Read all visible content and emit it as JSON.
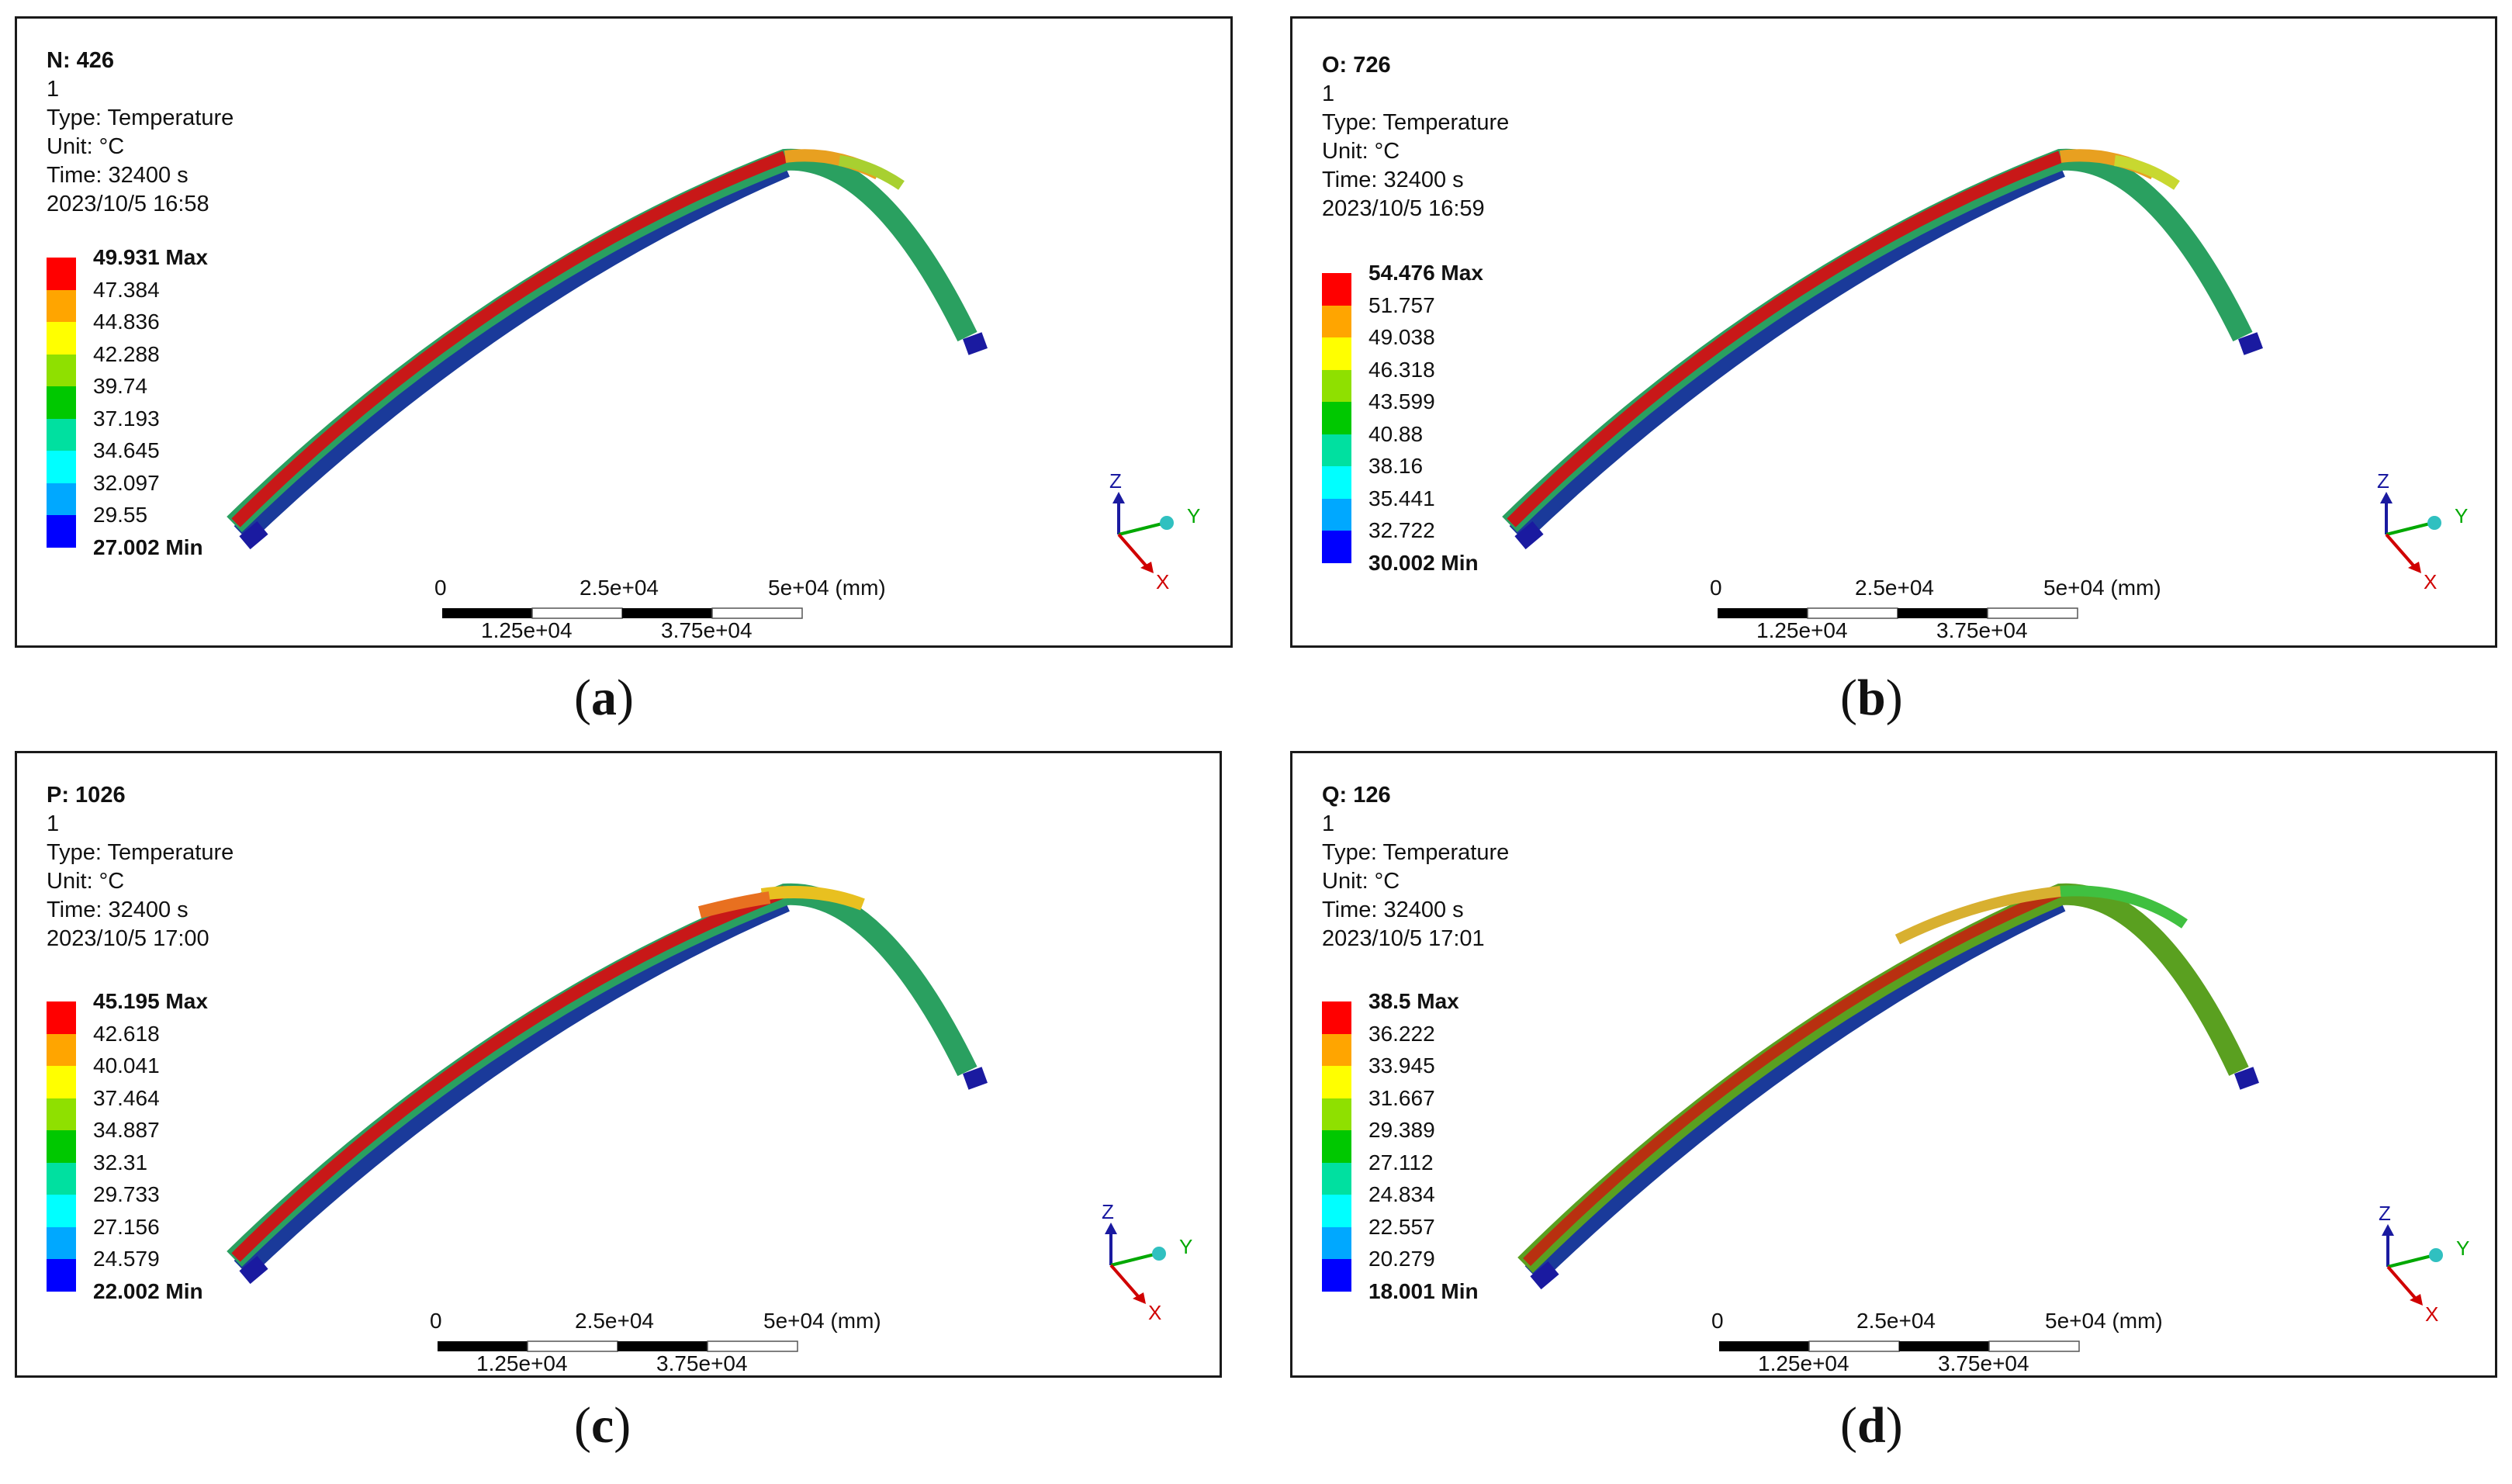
{
  "panels": [
    {
      "caption": "a",
      "title": "N: 426",
      "line2": "1",
      "type_label": "Type: Temperature",
      "unit_label": "Unit: °C",
      "time_label": "Time: 32400 s",
      "date_label": "2023/10/5 16:58",
      "legend": [
        "49.931 Max",
        "47.384",
        "44.836",
        "42.288",
        "39.74",
        "37.193",
        "34.645",
        "32.097",
        "29.55",
        "27.002 Min"
      ]
    },
    {
      "caption": "b",
      "title": "O: 726",
      "line2": "1",
      "type_label": "Type: Temperature",
      "unit_label": "Unit: °C",
      "time_label": "Time: 32400 s",
      "date_label": "2023/10/5 16:59",
      "legend": [
        "54.476 Max",
        "51.757",
        "49.038",
        "46.318",
        "43.599",
        "40.88",
        "38.16",
        "35.441",
        "32.722",
        "30.002 Min"
      ]
    },
    {
      "caption": "c",
      "title": "P: 1026",
      "line2": "1",
      "type_label": "Type: Temperature",
      "unit_label": "Unit: °C",
      "time_label": "Time: 32400 s",
      "date_label": "2023/10/5 17:00",
      "legend": [
        "45.195 Max",
        "42.618",
        "40.041",
        "37.464",
        "34.887",
        "32.31",
        "29.733",
        "27.156",
        "24.579",
        "22.002 Min"
      ]
    },
    {
      "caption": "d",
      "title": "Q: 126",
      "line2": "1",
      "type_label": "Type: Temperature",
      "unit_label": "Unit: °C",
      "time_label": "Time: 32400 s",
      "date_label": "2023/10/5 17:01",
      "legend": [
        "38.5 Max",
        "36.222",
        "33.945",
        "31.667",
        "29.389",
        "27.112",
        "24.834",
        "22.557",
        "20.279",
        "18.001 Min"
      ]
    }
  ],
  "scale_bar": {
    "top_labels": [
      "0",
      "2.5e+04",
      "5e+04 (mm)"
    ],
    "bottom_labels": [
      "1.25e+04",
      "3.75e+04"
    ]
  },
  "triad": {
    "z": "Z",
    "y": "Y",
    "x": "X"
  },
  "legend_colors": [
    "#ff0000",
    "#ffa500",
    "#ffff00",
    "#8fe000",
    "#00c800",
    "#00e0a0",
    "#00ffff",
    "#00a8ff",
    "#0000ff"
  ]
}
